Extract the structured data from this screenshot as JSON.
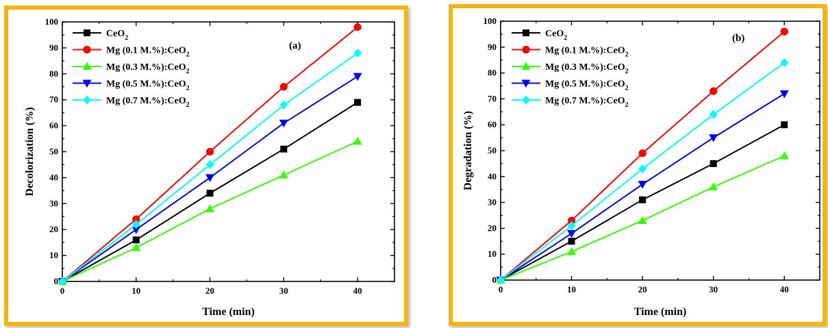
{
  "charts": {
    "chart_a": {
      "type": "line",
      "tag": "(a)",
      "xlabel": "Time (min)",
      "ylabel": "Decolorization (%)",
      "xlim": [
        0,
        45
      ],
      "ylim": [
        0,
        100
      ],
      "x": [
        0,
        10,
        20,
        30,
        40
      ],
      "xticks": [
        0,
        10,
        20,
        30,
        40
      ],
      "yticks": [
        0,
        10,
        20,
        30,
        40,
        50,
        60,
        70,
        80,
        90,
        100
      ],
      "legend_position": "top-left",
      "series": [
        {
          "name_main": "CeO",
          "name_sub": "2",
          "color": "#000000",
          "marker": "square",
          "values": [
            0,
            16,
            34,
            51,
            69
          ]
        },
        {
          "name_main": "Mg (0.1 M.%):CeO",
          "name_sub": "2",
          "color": "#ff0000",
          "marker": "circle",
          "values": [
            0,
            24,
            50,
            75,
            98
          ]
        },
        {
          "name_main": "Mg (0.3 M.%):CeO",
          "name_sub": "2",
          "color": "#33ff00",
          "marker": "triangle-up",
          "values": [
            0,
            13,
            28,
            41,
            54
          ]
        },
        {
          "name_main": "Mg (0.5 M.%):CeO",
          "name_sub": "2",
          "color": "#0000ff",
          "marker": "triangle-down",
          "values": [
            0,
            20,
            40,
            61,
            79
          ]
        },
        {
          "name_main": "Mg (0.7 M.%):CeO",
          "name_sub": "2",
          "color": "#00ffff",
          "marker": "diamond",
          "values": [
            0,
            22,
            45,
            68,
            88
          ]
        }
      ]
    },
    "chart_b": {
      "type": "line",
      "tag": "(b)",
      "xlabel": "Time (min)",
      "ylabel": "Degradation (%)",
      "xlim": [
        0,
        45
      ],
      "ylim": [
        0,
        100
      ],
      "x": [
        0,
        10,
        20,
        30,
        40
      ],
      "xticks": [
        0,
        10,
        20,
        30,
        40
      ],
      "yticks": [
        0,
        10,
        20,
        30,
        40,
        50,
        60,
        70,
        80,
        90,
        100
      ],
      "legend_position": "top-left",
      "series": [
        {
          "name_main": "CeO",
          "name_sub": "2",
          "color": "#000000",
          "marker": "square",
          "values": [
            0,
            15,
            31,
            45,
            60
          ]
        },
        {
          "name_main": "Mg (0.1 M.%):CeO",
          "name_sub": "2",
          "color": "#ff0000",
          "marker": "circle",
          "values": [
            0,
            23,
            49,
            73,
            96
          ]
        },
        {
          "name_main": "Mg (0.3 M.%):CeO",
          "name_sub": "2",
          "color": "#33ff00",
          "marker": "triangle-up",
          "values": [
            0,
            11,
            23,
            36,
            48
          ]
        },
        {
          "name_main": "Mg (0.5 M.%):CeO",
          "name_sub": "2",
          "color": "#0000ff",
          "marker": "triangle-down",
          "values": [
            0,
            18,
            37,
            55,
            72
          ]
        },
        {
          "name_main": "Mg (0.7 M.%):CeO",
          "name_sub": "2",
          "color": "#00ffff",
          "marker": "diamond",
          "values": [
            0,
            21,
            43,
            64,
            84
          ]
        }
      ]
    }
  },
  "chart_data": [
    {
      "type": "line",
      "title": "",
      "annotation": "(a)",
      "xlabel": "Time (min)",
      "ylabel": "Decolorization (%)",
      "xlim": [
        0,
        45
      ],
      "ylim": [
        0,
        100
      ],
      "x": [
        0,
        10,
        20,
        30,
        40
      ],
      "grid": false,
      "legend_position": "top-left",
      "series": [
        {
          "name": "CeO2",
          "values": [
            0,
            16,
            34,
            51,
            69
          ]
        },
        {
          "name": "Mg (0.1 M.%):CeO2",
          "values": [
            0,
            24,
            50,
            75,
            98
          ]
        },
        {
          "name": "Mg (0.3 M.%):CeO2",
          "values": [
            0,
            13,
            28,
            41,
            54
          ]
        },
        {
          "name": "Mg (0.5 M.%):CeO2",
          "values": [
            0,
            20,
            40,
            61,
            79
          ]
        },
        {
          "name": "Mg (0.7 M.%):CeO2",
          "values": [
            0,
            22,
            45,
            68,
            88
          ]
        }
      ]
    },
    {
      "type": "line",
      "title": "",
      "annotation": "(b)",
      "xlabel": "Time (min)",
      "ylabel": "Degradation (%)",
      "xlim": [
        0,
        45
      ],
      "ylim": [
        0,
        100
      ],
      "x": [
        0,
        10,
        20,
        30,
        40
      ],
      "grid": false,
      "legend_position": "top-left",
      "series": [
        {
          "name": "CeO2",
          "values": [
            0,
            15,
            31,
            45,
            60
          ]
        },
        {
          "name": "Mg (0.1 M.%):CeO2",
          "values": [
            0,
            23,
            49,
            73,
            96
          ]
        },
        {
          "name": "Mg (0.3 M.%):CeO2",
          "values": [
            0,
            11,
            23,
            36,
            48
          ]
        },
        {
          "name": "Mg (0.5 M.%):CeO2",
          "values": [
            0,
            18,
            37,
            55,
            72
          ]
        },
        {
          "name": "Mg (0.7 M.%):CeO2",
          "values": [
            0,
            21,
            43,
            64,
            84
          ]
        }
      ]
    }
  ],
  "colors": {
    "frame_border": "#f5b50c"
  }
}
